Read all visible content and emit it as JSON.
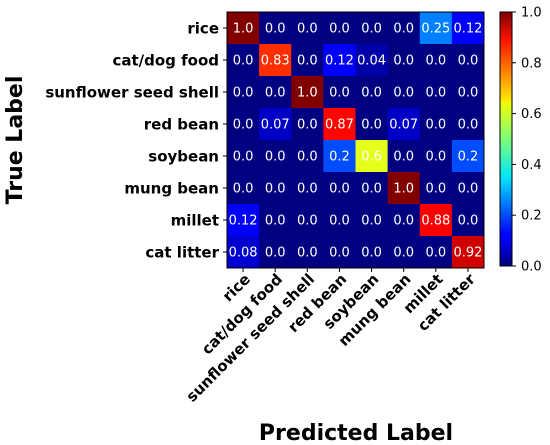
{
  "chart_data": {
    "type": "heatmap",
    "xlabel": "Predicted Label",
    "ylabel": "True Label",
    "x_categories": [
      "rice",
      "cat/dog food",
      "sunflower seed shell",
      "red bean",
      "soybean",
      "mung bean",
      "millet",
      "cat litter"
    ],
    "y_categories": [
      "rice",
      "cat/dog food",
      "sunflower seed shell",
      "red bean",
      "soybean",
      "mung bean",
      "millet",
      "cat litter"
    ],
    "values": [
      [
        1.0,
        0.0,
        0.0,
        0.0,
        0.0,
        0.0,
        0.25,
        0.12
      ],
      [
        0.0,
        0.83,
        0.0,
        0.12,
        0.04,
        0.0,
        0.0,
        0.0
      ],
      [
        0.0,
        0.0,
        1.0,
        0.0,
        0.0,
        0.0,
        0.0,
        0.0
      ],
      [
        0.0,
        0.07,
        0.0,
        0.87,
        0.0,
        0.07,
        0.0,
        0.0
      ],
      [
        0.0,
        0.0,
        0.0,
        0.2,
        0.6,
        0.0,
        0.0,
        0.2
      ],
      [
        0.0,
        0.0,
        0.0,
        0.0,
        0.0,
        1.0,
        0.0,
        0.0
      ],
      [
        0.12,
        0.0,
        0.0,
        0.0,
        0.0,
        0.0,
        0.88,
        0.0
      ],
      [
        0.08,
        0.0,
        0.0,
        0.0,
        0.0,
        0.0,
        0.0,
        0.92
      ]
    ],
    "cell_labels": [
      [
        "1.0",
        "0.0",
        "0.0",
        "0.0",
        "0.0",
        "0.0",
        "0.25",
        "0.12"
      ],
      [
        "0.0",
        "0.83",
        "0.0",
        "0.12",
        "0.04",
        "0.0",
        "0.0",
        "0.0"
      ],
      [
        "0.0",
        "0.0",
        "1.0",
        "0.0",
        "0.0",
        "0.0",
        "0.0",
        "0.0"
      ],
      [
        "0.0",
        "0.07",
        "0.0",
        "0.87",
        "0.0",
        "0.07",
        "0.0",
        "0.0"
      ],
      [
        "0.0",
        "0.0",
        "0.0",
        "0.2",
        "0.6",
        "0.0",
        "0.0",
        "0.2"
      ],
      [
        "0.0",
        "0.0",
        "0.0",
        "0.0",
        "0.0",
        "1.0",
        "0.0",
        "0.0"
      ],
      [
        "0.12",
        "0.0",
        "0.0",
        "0.0",
        "0.0",
        "0.0",
        "0.88",
        "0.0"
      ],
      [
        "0.08",
        "0.0",
        "0.0",
        "0.0",
        "0.0",
        "0.0",
        "0.0",
        "0.92"
      ]
    ],
    "colormap": "jet",
    "vmin": 0.0,
    "vmax": 1.0,
    "colorbar_ticks": [
      "0.0",
      "0.2",
      "0.4",
      "0.6",
      "0.8",
      "1.0"
    ]
  }
}
